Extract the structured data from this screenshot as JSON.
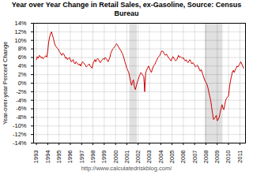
{
  "chart_data": {
    "type": "line",
    "title": "Year over Year Change in Retail Sales, ex-Gasoline, Source: Census Bureau",
    "y_label": "Year-over-year Percent Change",
    "annotations": [
      "http://www.calculatedriskblog.com/"
    ],
    "color": "#cc0000",
    "grid": true,
    "xlim": [
      1992.75,
      2011.5
    ],
    "ylim": [
      -14,
      14
    ],
    "xticks": [
      1993,
      1994,
      1995,
      1996,
      1997,
      1998,
      1999,
      2000,
      2001,
      2002,
      2003,
      2004,
      2005,
      2006,
      2007,
      2008,
      2009,
      2010,
      2011
    ],
    "yticks": [
      {
        "value": -14,
        "label": "-14%"
      },
      {
        "value": -12,
        "label": "-12%"
      },
      {
        "value": -10,
        "label": "-10%"
      },
      {
        "value": -8,
        "label": "-8%"
      },
      {
        "value": -6,
        "label": "-6%"
      },
      {
        "value": -4,
        "label": "-4%"
      },
      {
        "value": -2,
        "label": "-2%"
      },
      {
        "value": 0,
        "label": "0%"
      },
      {
        "value": 2,
        "label": "2%"
      },
      {
        "value": 4,
        "label": "4%"
      },
      {
        "value": 6,
        "label": "6%"
      },
      {
        "value": 8,
        "label": "8%"
      },
      {
        "value": 10,
        "label": "10%"
      },
      {
        "value": 12,
        "label": "12%"
      },
      {
        "value": 14,
        "label": "14%"
      }
    ],
    "recession_bands": [
      [
        2001.25,
        2001.92
      ],
      [
        2007.92,
        2009.5
      ]
    ],
    "x": [
      1993.0,
      1993.08,
      1993.17,
      1993.25,
      1993.33,
      1993.42,
      1993.5,
      1993.58,
      1993.67,
      1993.75,
      1993.83,
      1993.92,
      1994.0,
      1994.08,
      1994.17,
      1994.25,
      1994.33,
      1994.42,
      1994.5,
      1994.58,
      1994.67,
      1994.75,
      1994.83,
      1994.92,
      1995.0,
      1995.08,
      1995.17,
      1995.25,
      1995.33,
      1995.42,
      1995.5,
      1995.58,
      1995.67,
      1995.75,
      1995.83,
      1995.92,
      1996.0,
      1996.08,
      1996.17,
      1996.25,
      1996.33,
      1996.42,
      1996.5,
      1996.58,
      1996.67,
      1996.75,
      1996.83,
      1996.92,
      1997.0,
      1997.08,
      1997.17,
      1997.25,
      1997.33,
      1997.42,
      1997.5,
      1997.58,
      1997.67,
      1997.75,
      1997.83,
      1997.92,
      1998.0,
      1998.08,
      1998.17,
      1998.25,
      1998.33,
      1998.42,
      1998.5,
      1998.58,
      1998.67,
      1998.75,
      1998.83,
      1998.92,
      1999.0,
      1999.08,
      1999.17,
      1999.25,
      1999.33,
      1999.42,
      1999.5,
      1999.58,
      1999.67,
      1999.75,
      1999.83,
      1999.92,
      2000.0,
      2000.08,
      2000.17,
      2000.25,
      2000.33,
      2000.42,
      2000.5,
      2000.58,
      2000.67,
      2000.75,
      2000.83,
      2000.92,
      2001.0,
      2001.08,
      2001.17,
      2001.25,
      2001.33,
      2001.42,
      2001.5,
      2001.58,
      2001.67,
      2001.75,
      2001.83,
      2001.92,
      2002.0,
      2002.08,
      2002.17,
      2002.25,
      2002.33,
      2002.42,
      2002.5,
      2002.58,
      2002.67,
      2002.75,
      2002.83,
      2002.92,
      2003.0,
      2003.08,
      2003.17,
      2003.25,
      2003.33,
      2003.42,
      2003.5,
      2003.58,
      2003.67,
      2003.75,
      2003.83,
      2003.92,
      2004.0,
      2004.08,
      2004.17,
      2004.25,
      2004.33,
      2004.42,
      2004.5,
      2004.58,
      2004.67,
      2004.75,
      2004.83,
      2004.92,
      2005.0,
      2005.08,
      2005.17,
      2005.25,
      2005.33,
      2005.42,
      2005.5,
      2005.58,
      2005.67,
      2005.75,
      2005.83,
      2005.92,
      2006.0,
      2006.08,
      2006.17,
      2006.25,
      2006.33,
      2006.42,
      2006.5,
      2006.58,
      2006.67,
      2006.75,
      2006.83,
      2006.92,
      2007.0,
      2007.08,
      2007.17,
      2007.25,
      2007.33,
      2007.42,
      2007.5,
      2007.58,
      2007.67,
      2007.75,
      2007.83,
      2007.92,
      2008.0,
      2008.08,
      2008.17,
      2008.25,
      2008.33,
      2008.42,
      2008.5,
      2008.58,
      2008.67,
      2008.75,
      2008.83,
      2008.92,
      2009.0,
      2009.08,
      2009.17,
      2009.25,
      2009.33,
      2009.42,
      2009.5,
      2009.58,
      2009.67,
      2009.75,
      2009.83,
      2009.92,
      2010.0,
      2010.08,
      2010.17,
      2010.25,
      2010.33,
      2010.42,
      2010.5,
      2010.58,
      2010.67,
      2010.75,
      2010.83,
      2010.92,
      2011.0,
      2011.08,
      2011.17,
      2011.25,
      2011.33
    ],
    "values": [
      5.5,
      6.2,
      5.8,
      6.5,
      6.3,
      5.9,
      6.1,
      5.7,
      6.0,
      6.2,
      6.4,
      6.1,
      7.5,
      9.5,
      10.8,
      11.5,
      12.0,
      11.2,
      10.5,
      9.5,
      8.8,
      8.5,
      8.2,
      8.0,
      7.5,
      7.2,
      6.8,
      6.5,
      7.0,
      6.8,
      6.3,
      5.8,
      6.0,
      5.5,
      5.8,
      6.0,
      5.5,
      5.0,
      5.2,
      5.5,
      4.8,
      4.5,
      5.0,
      4.8,
      4.5,
      4.2,
      4.5,
      4.0,
      4.5,
      5.0,
      4.8,
      4.5,
      4.2,
      3.8,
      4.0,
      4.2,
      4.5,
      4.0,
      3.8,
      3.5,
      4.5,
      5.0,
      5.5,
      5.0,
      5.5,
      5.8,
      5.5,
      5.0,
      4.8,
      5.2,
      5.5,
      5.8,
      5.5,
      6.0,
      5.8,
      5.5,
      5.0,
      5.5,
      6.0,
      7.0,
      7.5,
      8.0,
      8.2,
      8.5,
      8.8,
      9.2,
      9.0,
      8.5,
      8.2,
      7.8,
      7.5,
      7.0,
      6.5,
      5.8,
      5.0,
      4.2,
      3.5,
      3.0,
      2.5,
      1.5,
      0.5,
      -0.5,
      0.2,
      0.8,
      -0.8,
      -1.5,
      -0.8,
      0.2,
      0.8,
      1.5,
      2.0,
      2.5,
      2.2,
      1.8,
      1.5,
      -2.0,
      2.5,
      3.0,
      3.5,
      4.0,
      3.5,
      3.0,
      2.5,
      3.2,
      3.8,
      4.2,
      4.5,
      5.0,
      5.5,
      6.0,
      6.2,
      6.5,
      7.0,
      7.5,
      7.5,
      7.2,
      6.8,
      6.5,
      6.8,
      6.5,
      6.0,
      5.8,
      5.5,
      5.2,
      5.8,
      6.2,
      5.8,
      5.5,
      5.2,
      5.5,
      6.0,
      6.5,
      6.0,
      6.2,
      6.0,
      5.8,
      6.0,
      5.5,
      5.2,
      5.5,
      5.0,
      4.8,
      5.2,
      5.5,
      5.0,
      4.5,
      4.8,
      4.5,
      4.2,
      3.8,
      4.0,
      4.2,
      3.8,
      3.2,
      2.8,
      3.2,
      2.5,
      1.8,
      1.2,
      0.5,
      0.2,
      -0.2,
      -1.0,
      -2.0,
      -3.0,
      -4.0,
      -5.5,
      -7.0,
      -8.5,
      -8.2,
      -8.0,
      -7.5,
      -8.8,
      -8.5,
      -8.0,
      -7.0,
      -6.0,
      -5.0,
      -5.8,
      -6.2,
      -5.0,
      -4.0,
      -3.5,
      -3.2,
      -3.0,
      -1.0,
      0.5,
      1.5,
      2.5,
      3.0,
      2.5,
      3.0,
      3.5,
      4.0,
      3.8,
      4.2,
      4.5,
      5.0,
      4.5,
      4.0,
      3.5
    ]
  }
}
